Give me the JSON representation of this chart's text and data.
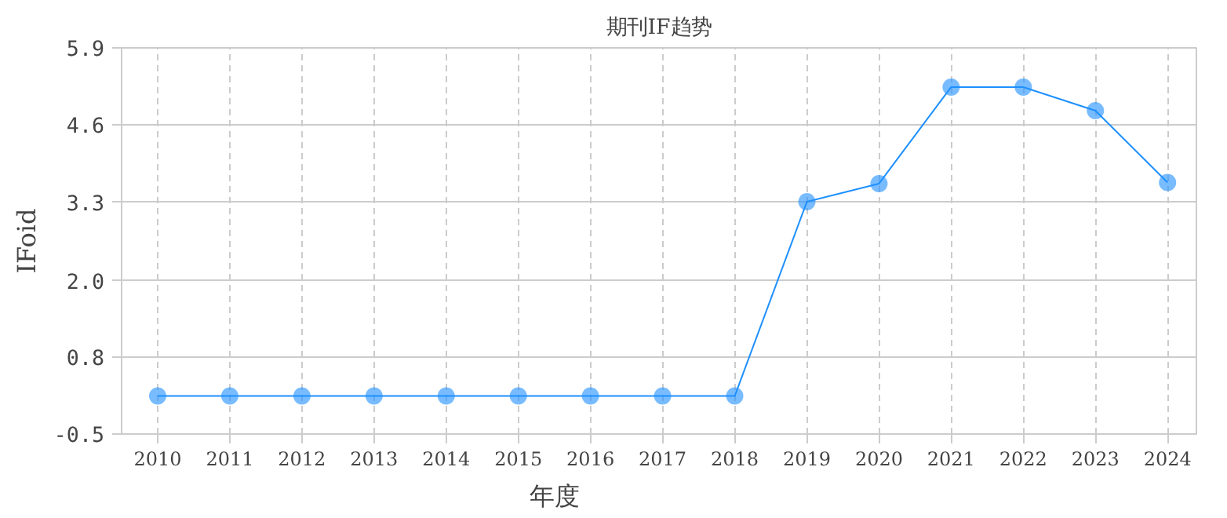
{
  "chart_data": {
    "type": "line",
    "title": "期刊IF趋势",
    "xlabel": "年度",
    "ylabel": "IFoid",
    "categories": [
      "2010",
      "2011",
      "2012",
      "2013",
      "2014",
      "2015",
      "2016",
      "2017",
      "2018",
      "2019",
      "2020",
      "2021",
      "2022",
      "2023",
      "2024"
    ],
    "series": [
      {
        "color": "#1e90ff",
        "values": [
          0.13,
          0.13,
          0.13,
          0.13,
          0.13,
          0.13,
          0.13,
          0.13,
          0.13,
          3.35,
          3.65,
          5.25,
          5.25,
          4.86,
          3.67
        ]
      }
    ],
    "ylim": [
      -0.5,
      5.9
    ],
    "yticks": [
      -0.5,
      {
        "value": 0.78,
        "label": "0.8"
      },
      {
        "value": 2.04,
        "label": "2.0"
      },
      {
        "value": 3.34,
        "label": "3.3"
      },
      {
        "value": 4.62,
        "label": "4.6"
      },
      5.9
    ],
    "grid": true,
    "marker": "circle",
    "line_style": "solid"
  }
}
